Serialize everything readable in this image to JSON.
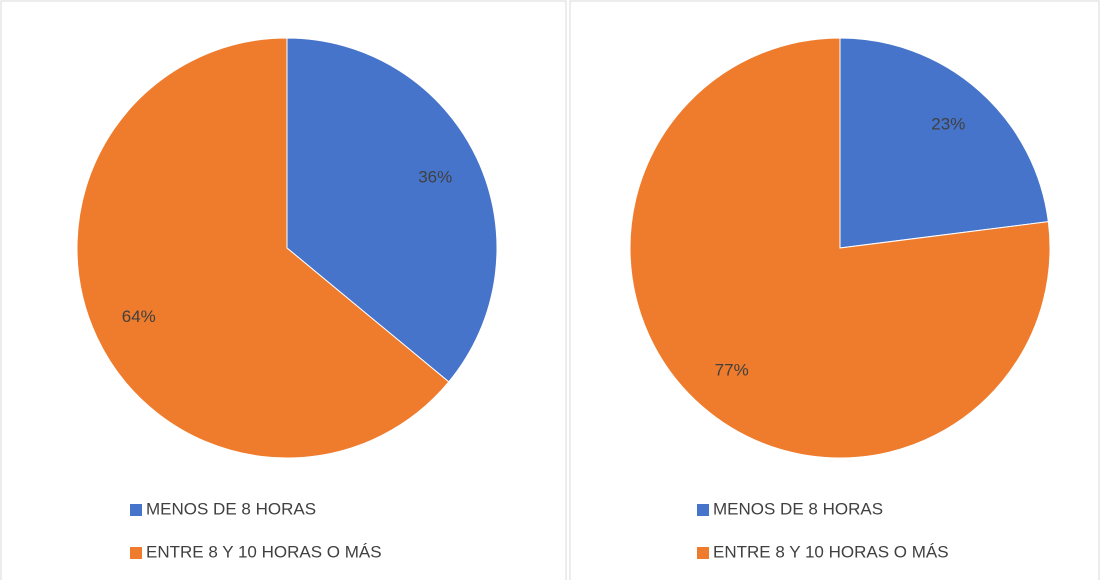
{
  "chart_data": [
    {
      "type": "pie",
      "categories": [
        "MENOS DE 8 HORAS",
        "ENTRE 8 Y 10 HORAS O MÁS"
      ],
      "values": [
        36,
        64
      ],
      "value_labels": [
        "36%",
        "64%"
      ],
      "colors": [
        "#4674cb",
        "#ef7b2c"
      ]
    },
    {
      "type": "pie",
      "categories": [
        "MENOS DE 8 HORAS",
        "ENTRE 8 Y 10 HORAS O MÁS"
      ],
      "values": [
        23,
        77
      ],
      "value_labels": [
        "23%",
        "77%"
      ],
      "colors": [
        "#4674cb",
        "#ef7b2c"
      ]
    }
  ]
}
